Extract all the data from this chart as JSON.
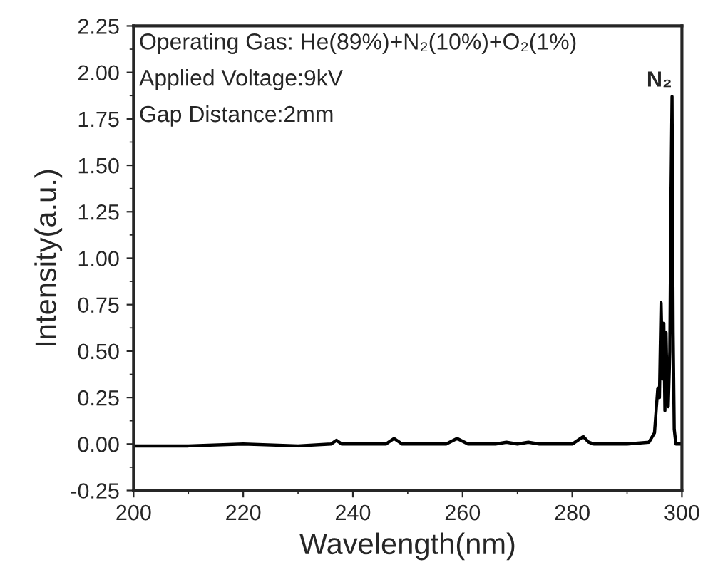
{
  "chart_data": {
    "type": "line",
    "xlabel": "Wavelength(nm)",
    "ylabel": "Intensity(a.u.)",
    "xlim": [
      200,
      300
    ],
    "xticks": [
      200,
      220,
      240,
      260,
      280,
      300
    ],
    "ylim": [
      -0.25,
      2.25
    ],
    "yticks": [
      {
        "value": -0.25,
        "label": "-0.25"
      },
      {
        "value": 0,
        "label": "0.00"
      },
      {
        "value": 0.25,
        "label": "0.25"
      },
      {
        "value": 0.5,
        "label": "0.50"
      },
      {
        "value": 0.75,
        "label": "0.75"
      },
      {
        "value": 1.0,
        "label": "1.00"
      },
      {
        "value": 1.25,
        "label": "1.25"
      },
      {
        "value": 1.5,
        "label": "1.50"
      },
      {
        "value": 1.75,
        "label": "1.75"
      },
      {
        "value": 2.0,
        "label": "2.00"
      },
      {
        "value": 2.25,
        "label": "2.25"
      }
    ],
    "series": [
      {
        "color": "#000000",
        "x": [
          200,
          210,
          220,
          230,
          236,
          237,
          238,
          246,
          247.5,
          249,
          257,
          259,
          261,
          266,
          268,
          270,
          272,
          274,
          280,
          282,
          283,
          284,
          290,
          294,
          295,
          295.6,
          295.9,
          296.2,
          296.5,
          296.7,
          296.9,
          297.1,
          297.3,
          297.5,
          297.8,
          298.0,
          298.2,
          298.4,
          298.6,
          298.9,
          299.3,
          300
        ],
        "values": [
          -0.01,
          -0.01,
          0.0,
          -0.01,
          0.0,
          0.02,
          0.0,
          0.0,
          0.03,
          0.0,
          0.0,
          0.03,
          0.0,
          0.0,
          0.01,
          0.0,
          0.01,
          0.0,
          0.0,
          0.04,
          0.01,
          0.0,
          0.0,
          0.01,
          0.06,
          0.3,
          0.25,
          0.76,
          0.35,
          0.65,
          0.18,
          0.6,
          0.3,
          0.2,
          0.5,
          1.3,
          1.87,
          0.6,
          0.08,
          0.0,
          0.0,
          0.0
        ]
      }
    ],
    "annotations": [
      "Operating Gas: He(89%)+N₂(10%)+O₂(1%)",
      "Applied Voltage:9kV",
      "Gap Distance:2mm",
      {
        "text": "N₂",
        "x": 298.2,
        "y": 1.9
      }
    ],
    "grid": false,
    "legend": false
  }
}
